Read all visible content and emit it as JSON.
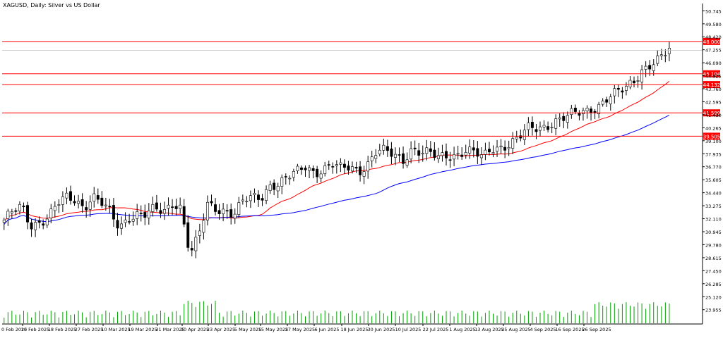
{
  "chart_data": {
    "type": "candlestick",
    "title": "XAGUSD, Daily: Silver vs US Dollar",
    "ylim": [
      22.8,
      51.4
    ],
    "y_ticks": [
      "50.745",
      "49.580",
      "48.420",
      "47.255",
      "46.090",
      "44.925",
      "43.760",
      "42.595",
      "41.430",
      "40.265",
      "39.100",
      "37.935",
      "36.770",
      "35.605",
      "34.440",
      "33.275",
      "32.110",
      "30.945",
      "29.780",
      "28.615",
      "27.450",
      "26.285",
      "25.120",
      "23.955"
    ],
    "x_labels": [
      "10 Feb 2025",
      "18 Feb 2025",
      "27 Feb 2025",
      "10 Mar 2025",
      "19 Mar 2025",
      "31 Mar 2025",
      "10 Apr 2025",
      "23 Apr 2025",
      "5 May 2025",
      "15 May 2025",
      "27 May 2025",
      "6 Jun 2025",
      "18 Jun 2025",
      "30 Jun 2025",
      "10 Jul 2025",
      "22 Jul 2025",
      "1 Aug 2025",
      "13 Aug 2025",
      "25 Aug 2025",
      "4 Sep 2025",
      "16 Sep 2025",
      "26 Sep 2025"
    ],
    "x_label_first_partial": "0 Feb 2025",
    "horizontal_levels": [
      {
        "label": "48.000",
        "value": 48.0
      },
      {
        "label": "45.104",
        "value": 45.104
      },
      {
        "label": "44.132",
        "value": 44.132
      },
      {
        "label": "41.599",
        "value": 41.599
      },
      {
        "label": "39.505",
        "value": 39.505
      }
    ],
    "current_price": 47.2,
    "close_anchors": [
      32.0,
      32.7,
      33.1,
      31.5,
      31.9,
      32.3,
      33.4,
      33.9,
      33.8,
      33.2,
      34.2,
      33.5,
      32.5,
      31.2,
      32.3,
      32.6,
      32.5,
      32.9,
      32.6,
      33.6,
      33.2,
      33.1,
      32.8,
      33.3,
      33.0,
      32.9,
      32.6,
      33.7,
      33.9,
      34.0,
      35.2,
      35.3,
      35.8,
      36.2,
      36.8,
      36.3,
      36.6,
      37.0,
      36.5,
      36.7,
      36.4,
      37.1,
      38.2,
      38.1,
      37.7,
      37.4,
      38.5,
      38.1,
      37.9,
      37.5,
      37.8,
      37.9,
      38.3,
      38.0,
      37.5,
      38.4,
      38.6,
      38.9,
      39.3,
      40.1,
      40.2,
      40.4,
      40.9,
      41.1,
      41.4,
      41.6,
      41.9,
      42.3,
      42.9,
      43.3,
      43.7,
      44.5,
      45.6,
      46.0,
      46.4,
      47.2
    ],
    "colors": {
      "bull_fill": "#ffffff",
      "bear_fill": "#000000",
      "candle_outline": "#000000",
      "ma_fast": "#ff0000",
      "ma_slow": "#0000ff",
      "level_line": "#ff0000",
      "level_label_bg": "#ff0000",
      "volume": "#00a000",
      "axis": "#000000",
      "current_price_line": "#c0c0c0"
    },
    "grid": false,
    "volume_bars": true
  }
}
